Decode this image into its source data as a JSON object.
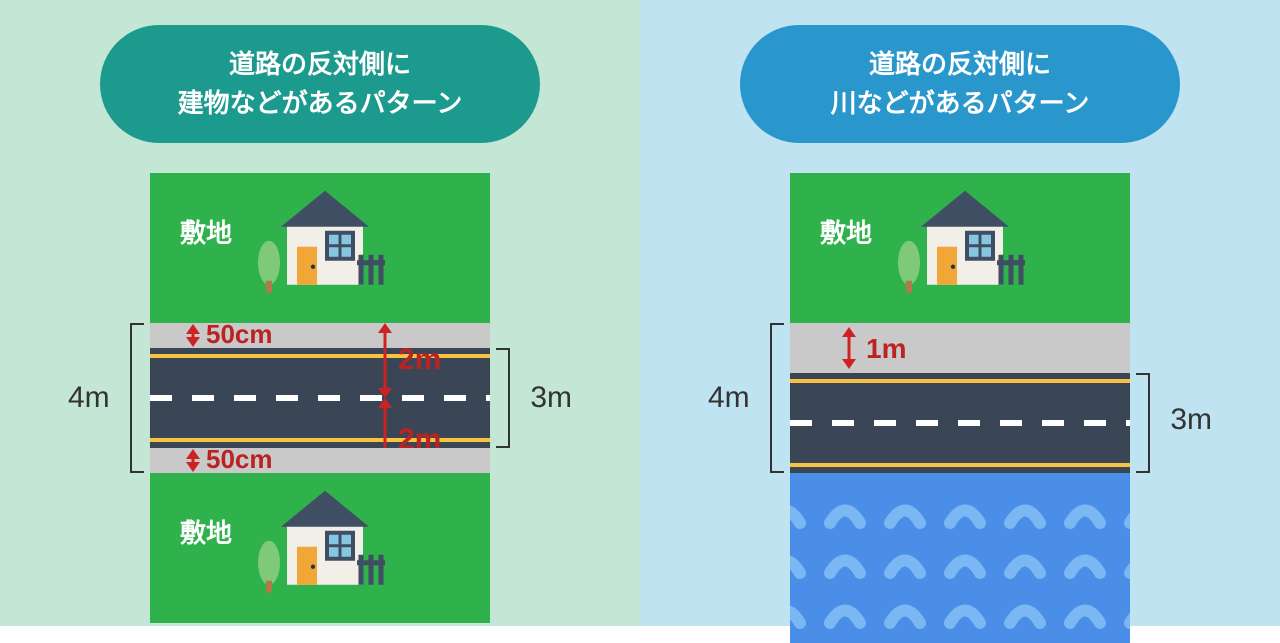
{
  "left_panel": {
    "bg": "#c3e7d4",
    "title_bg": "#1d9a8e",
    "title_line1": "道路の反対側に",
    "title_line2": "建物などがあるパターン",
    "lot_color": "#2fb24b",
    "lot_label": "敷地",
    "road": {
      "shoulder_h": 25,
      "pavement_h": 100,
      "pavement_color": "#3a4656",
      "yellow": "#f8c340",
      "shoulder_color": "#c9c9c9"
    },
    "dims": {
      "left_total": "4m",
      "right_total": "3m",
      "half_upper": "2m",
      "half_lower": "2m",
      "shoulder": "50cm"
    }
  },
  "right_panel": {
    "bg": "#bfe3f1",
    "title_bg": "#2997cc",
    "title_line1": "道路の反対側に",
    "title_line2": "川などがあるパターン",
    "lot_color": "#2fb24b",
    "lot_label": "敷地",
    "water_color": "#4b8ee8",
    "wave_color": "#7bb7f2",
    "dims": {
      "left_total": "4m",
      "right_total": "3m",
      "shoulder": "1m"
    }
  },
  "house_colors": {
    "wall": "#f2efe8",
    "roof": "#3f4e63",
    "door": "#f2a638",
    "window_frame": "#3f4e63",
    "window_fill": "#86c6e0",
    "tree": "#7fc97a",
    "trunk": "#b07a4a",
    "fence": "#3f4e63"
  }
}
